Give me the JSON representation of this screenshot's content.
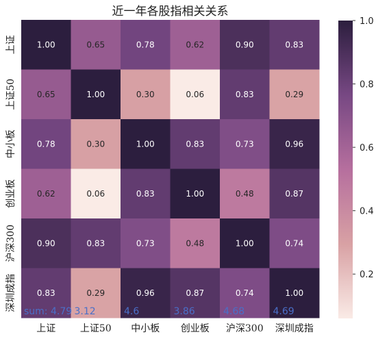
{
  "chart_data": {
    "type": "heatmap",
    "title": "近一年各股指相关关系",
    "row_labels": [
      "上证",
      "上证50",
      "中小板",
      "创业板",
      "沪深300",
      "深圳成指"
    ],
    "col_labels": [
      "上证",
      "上证50",
      "中小板",
      "创业板",
      "沪深300",
      "深圳成指"
    ],
    "values": [
      [
        1.0,
        0.65,
        0.78,
        0.62,
        0.9,
        0.83
      ],
      [
        0.65,
        1.0,
        0.3,
        0.06,
        0.83,
        0.29
      ],
      [
        0.78,
        0.3,
        1.0,
        0.83,
        0.73,
        0.96
      ],
      [
        0.62,
        0.06,
        0.83,
        1.0,
        0.48,
        0.87
      ],
      [
        0.9,
        0.83,
        0.73,
        0.48,
        1.0,
        0.74
      ],
      [
        0.83,
        0.29,
        0.96,
        0.87,
        0.74,
        1.0
      ]
    ],
    "cell_labels": [
      [
        "1.00",
        "0.65",
        "0.78",
        "0.62",
        "0.90",
        "0.83"
      ],
      [
        "0.65",
        "1.00",
        "0.30",
        "0.06",
        "0.83",
        "0.29"
      ],
      [
        "0.78",
        "0.30",
        "1.00",
        "0.83",
        "0.73",
        "0.96"
      ],
      [
        "0.62",
        "0.06",
        "0.83",
        "1.00",
        "0.48",
        "0.87"
      ],
      [
        "0.90",
        "0.83",
        "0.73",
        "0.48",
        "1.00",
        "0.74"
      ],
      [
        "0.83",
        "0.29",
        "0.96",
        "0.87",
        "0.74",
        "1.00"
      ]
    ],
    "sum_annotations": [
      "sum: 4.79",
      "3.12",
      "4.6",
      "3.86",
      "4.68",
      "4.69"
    ],
    "colorbar": {
      "range": [
        0.06,
        1.0
      ],
      "ticks": [
        0.2,
        0.4,
        0.6,
        0.8,
        1.0
      ],
      "tick_labels": [
        "0.2",
        "0.4",
        "0.6",
        "0.8",
        "1.0"
      ]
    },
    "colors": {
      "low": "#faebe6",
      "mid_low": "#d8a1a4",
      "mid": "#b66f9e",
      "mid_high": "#774883",
      "high": "#2c1e3e",
      "annotation": "#4a6fc8"
    }
  }
}
